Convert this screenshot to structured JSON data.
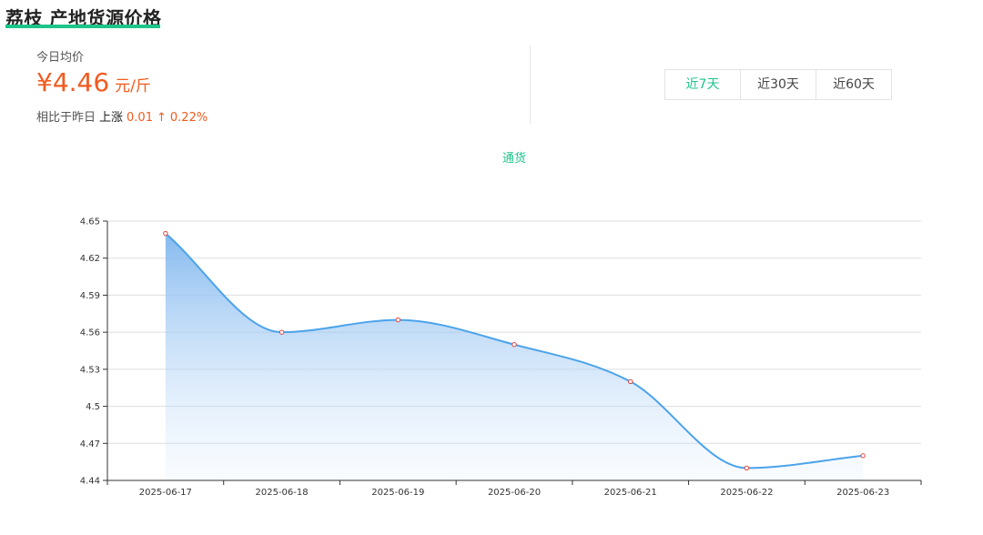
{
  "header": {
    "title": "荔枝 产地货源价格"
  },
  "price": {
    "label": "今日均价",
    "value": "¥4.46",
    "unit": "元/斤",
    "compare_label": "相比于昨日",
    "direction": "上涨",
    "change": "0.01",
    "arrow": "↑",
    "percent": "0.22%"
  },
  "range_tabs": [
    {
      "label": "近7天",
      "active": true
    },
    {
      "label": "近30天",
      "active": false
    },
    {
      "label": "近60天",
      "active": false
    }
  ],
  "colors": {
    "accent": "#1cc58a",
    "price": "#f25a1e",
    "line": "#4ba3ea",
    "marker": "#e0443b"
  },
  "chart_data": {
    "type": "area",
    "title": "",
    "xlabel": "",
    "ylabel": "",
    "categories": [
      "2025-06-17",
      "2025-06-18",
      "2025-06-19",
      "2025-06-20",
      "2025-06-21",
      "2025-06-22",
      "2025-06-23"
    ],
    "series": [
      {
        "name": "通货",
        "values": [
          4.64,
          4.56,
          4.57,
          4.55,
          4.52,
          4.45,
          4.46
        ]
      }
    ],
    "ylim": [
      4.44,
      4.65
    ],
    "yticks": [
      "4.44",
      "4.47",
      "4.5",
      "4.53",
      "4.56",
      "4.59",
      "4.62",
      "4.65"
    ],
    "grid": true,
    "legend_position": "top-center"
  }
}
